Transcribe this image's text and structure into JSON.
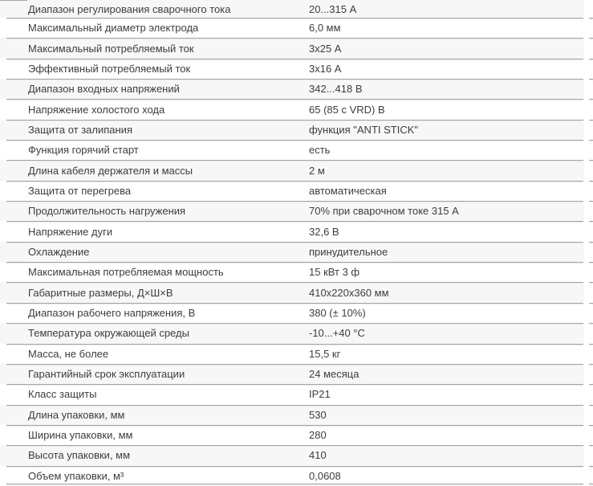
{
  "colors": {
    "row_alt": "#f7f7f7",
    "row_bg": "#ffffff",
    "line": "#a6a6a6",
    "line_hi": "#e7e7e7",
    "text": "#3d3d3d"
  },
  "table": {
    "rows": [
      {
        "label": "Диапазон регулирования сварочного тока",
        "value": "20...315 А"
      },
      {
        "label": "Максимальный диаметр электрода",
        "value": "6,0 мм"
      },
      {
        "label": "Максимальный потребляемый ток",
        "value": "3х25 А"
      },
      {
        "label": "Эффективный потребляемый ток",
        "value": "3х16 А"
      },
      {
        "label": "Диапазон входных напряжений",
        "value": "342...418 В"
      },
      {
        "label": "Напряжение холостого хода",
        "value": "65 (85 с VRD) В"
      },
      {
        "label": "Защита от залипания",
        "value": "функция \"ANTI STICK\""
      },
      {
        "label": "Функция горячий старт",
        "value": "есть"
      },
      {
        "label": "Длина кабеля держателя и массы",
        "value": "2 м"
      },
      {
        "label": "Защита от перегрева",
        "value": "автоматическая"
      },
      {
        "label": "Продолжительность нагружения",
        "value": "70% при сварочном токе 315 А"
      },
      {
        "label": "Напряжение дуги",
        "value": "32,6 В"
      },
      {
        "label": "Охлаждение",
        "value": "принудительное"
      },
      {
        "label": "Максимальная потребляемая мощность",
        "value": "15 кВт 3 ф"
      },
      {
        "label": "Габаритные размеры, Д×Ш×В",
        "value": "410х220х360 мм"
      },
      {
        "label": "Диапазон рабочего напряжения, В",
        "value": "380 (± 10%)"
      },
      {
        "label": "Температура окружающей среды",
        "value": "-10...+40 °С"
      },
      {
        "label": "Масса, не более",
        "value": "15,5 кг"
      },
      {
        "label": "Гарантийный срок эксплуатации",
        "value": "24 месяца"
      },
      {
        "label": "Класс защиты",
        "value": "IP21"
      },
      {
        "label": "Длина упаковки, мм",
        "value": "530"
      },
      {
        "label": "Ширина упаковки, мм",
        "value": "280"
      },
      {
        "label": "Высота упаковки, мм",
        "value": "410"
      },
      {
        "label": "Объем упаковки, м³",
        "value": "0,0608"
      }
    ]
  }
}
